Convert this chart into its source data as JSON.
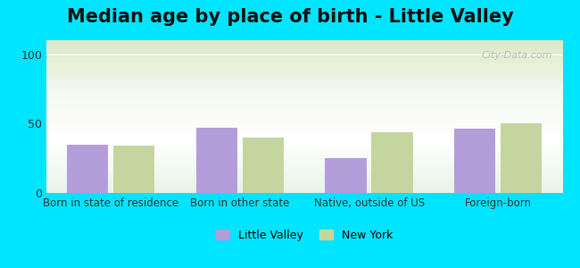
{
  "title": "Median age by place of birth - Little Valley",
  "categories": [
    "Born in state of residence",
    "Born in other state",
    "Native, outside of US",
    "Foreign-born"
  ],
  "little_valley": [
    35,
    47,
    25,
    46
  ],
  "new_york": [
    34,
    40,
    44,
    50
  ],
  "lv_color": "#b39ddb",
  "ny_color": "#c5d5a0",
  "legend_lv": "Little Valley",
  "legend_ny": "New York",
  "ylim": [
    0,
    110
  ],
  "yticks": [
    0,
    50,
    100
  ],
  "bg_outer": "#00e5ff",
  "bg_inner_top": "#e8f5e9",
  "bg_inner_bottom": "#f0f4e8",
  "title_fontsize": 15,
  "watermark": "City-Data.com"
}
